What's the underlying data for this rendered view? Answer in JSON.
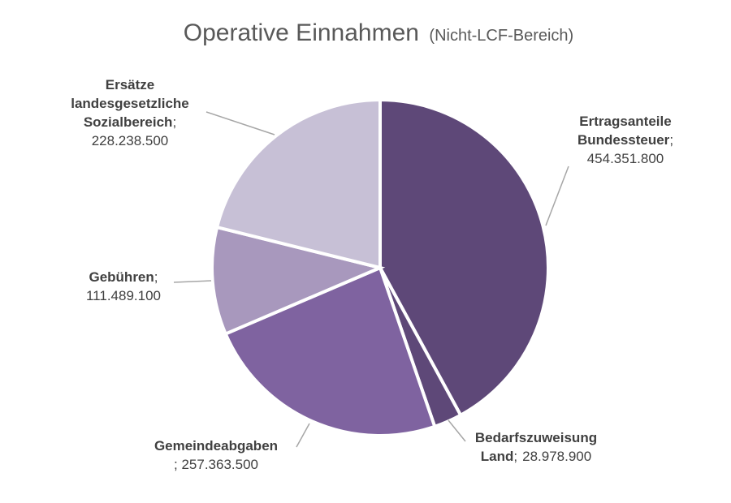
{
  "chart_data": {
    "type": "pie",
    "title": "Operative Einnahmen",
    "subtitle": "(Nicht-LCF-Bereich)",
    "slices": [
      {
        "label_lines": [
          "Ertragsanteile",
          "Bundessteuer;"
        ],
        "value_text": "454.351.800",
        "value": 454351800,
        "color": "#5e4878"
      },
      {
        "label_lines": [
          "Bedarfszuweisung",
          "Land;"
        ],
        "value_text": "28.978.900",
        "value": 28978900,
        "color": "#5e4878"
      },
      {
        "label_lines": [
          "Gemeindeabgaben",
          ";"
        ],
        "value_text": "257.363.500",
        "value": 257363500,
        "color": "#7f63a0"
      },
      {
        "label_lines": [
          "Gebühren;"
        ],
        "value_text": "111.489.100",
        "value": 111489100,
        "color": "#a898bd"
      },
      {
        "label_lines": [
          "Ersätze",
          "landesgesetzliche",
          "Sozialbereich;"
        ],
        "value_text": "228.238.500",
        "value": 228238500,
        "color": "#c7c0d6"
      }
    ]
  }
}
